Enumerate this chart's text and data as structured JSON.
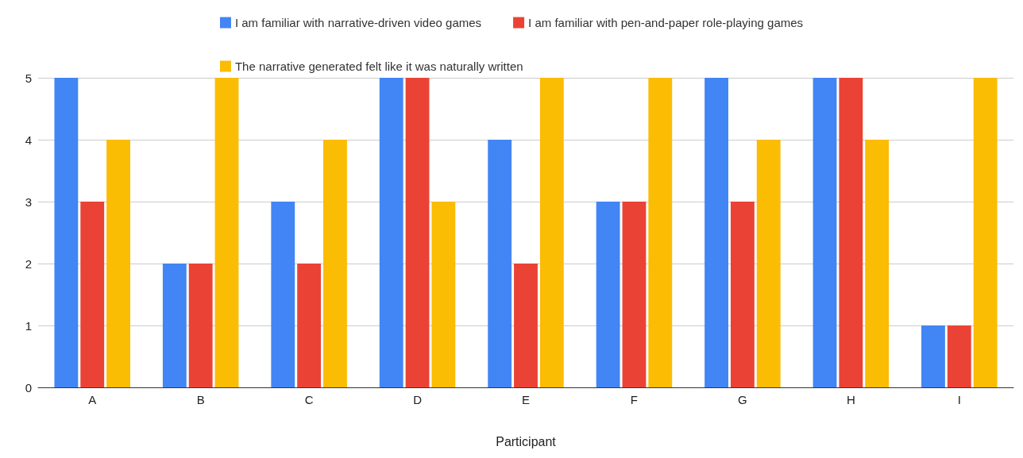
{
  "chart_data": {
    "type": "bar",
    "xlabel": "Participant",
    "categories": [
      "A",
      "B",
      "C",
      "D",
      "E",
      "F",
      "G",
      "H",
      "I"
    ],
    "series": [
      {
        "name": "I am familiar with narrative-driven video games",
        "color": "#4285f4",
        "values": [
          5,
          2,
          3,
          5,
          4,
          3,
          5,
          5,
          1
        ]
      },
      {
        "name": "I am familiar with pen-and-paper role-playing games",
        "color": "#ea4335",
        "values": [
          3,
          2,
          2,
          5,
          2,
          3,
          3,
          5,
          1
        ]
      },
      {
        "name": "The narrative generated felt like it was naturally written",
        "color": "#fbbc04",
        "values": [
          4,
          5,
          4,
          3,
          5,
          5,
          4,
          4,
          5
        ]
      }
    ],
    "ylim": [
      0,
      5
    ],
    "yticks": [
      0,
      1,
      2,
      3,
      4,
      5
    ],
    "grid": "y",
    "legend": "top"
  }
}
